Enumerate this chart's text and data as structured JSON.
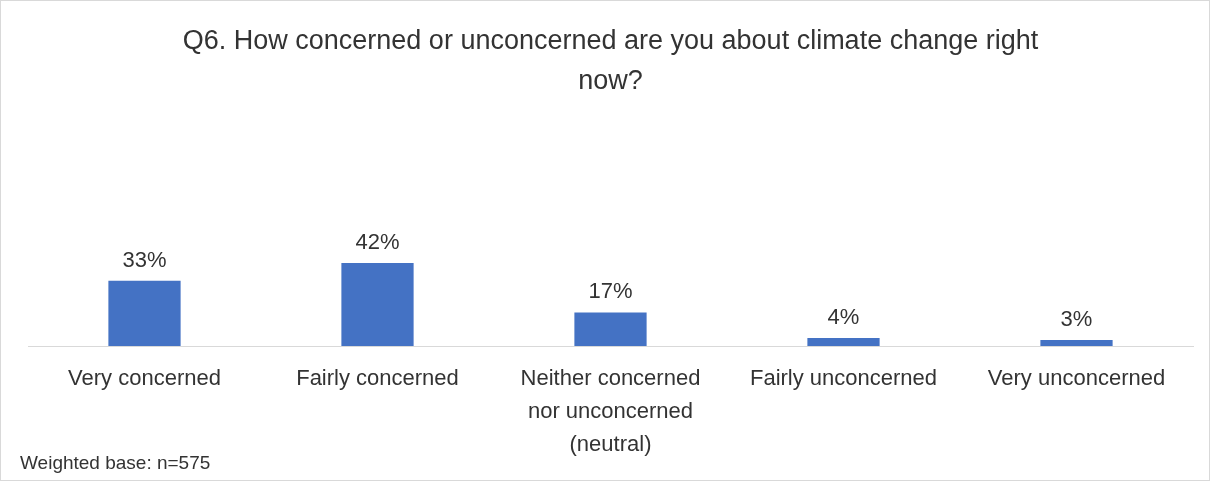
{
  "chart_data": {
    "type": "bar",
    "title": "Q6. How concerned or unconcerned are you about climate change right now?",
    "categories": [
      "Very concerned",
      "Fairly concerned",
      "Neither concerned nor unconcerned (neutral)",
      "Fairly unconcerned",
      "Very unconcerned"
    ],
    "values": [
      33,
      42,
      17,
      4,
      3
    ],
    "color": "#4472c4",
    "value_labels": [
      "33%",
      "42%",
      "17%",
      "4%",
      "3%"
    ],
    "annotations": [
      "Weighted base: n=575"
    ],
    "tick_labels": "x"
  }
}
